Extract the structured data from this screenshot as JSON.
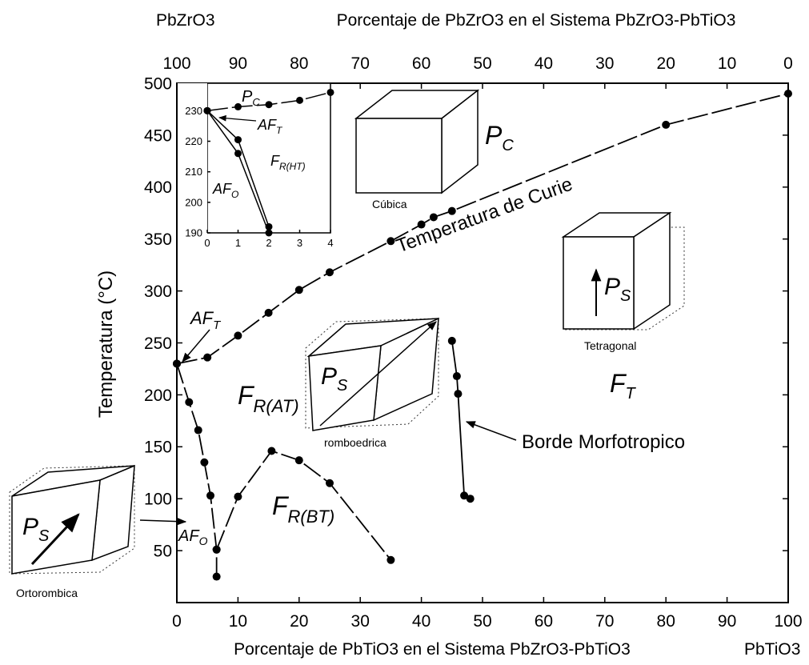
{
  "chart_data": [
    {
      "type": "line",
      "x_label": "Porcentaje de PbTiO3 en el Sistema PbZrO3-PbTiO3",
      "x_end_label": "PbTiO3",
      "x2_label": "Porcentaje de PbZrO3 en el Sistema PbZrO3-PbTiO3",
      "x2_end_label": "PbZrO3",
      "y_label": "Temperatura (°C)",
      "xlim": [
        0,
        100
      ],
      "xticks": [
        0,
        10,
        20,
        30,
        40,
        50,
        60,
        70,
        80,
        90,
        100
      ],
      "x2lim": [
        100,
        0
      ],
      "x2ticks": [
        100,
        90,
        80,
        70,
        60,
        50,
        40,
        30,
        20,
        10,
        0
      ],
      "ylim": [
        0,
        500
      ],
      "yticks": [
        50,
        100,
        150,
        200,
        250,
        300,
        350,
        400,
        450,
        500
      ],
      "grid": false,
      "series": [
        {
          "color": "#000000",
          "linestyle": "dashdot",
          "x": [
            0,
            5,
            10,
            15,
            20,
            25,
            35,
            40,
            42,
            45,
            80,
            100
          ],
          "values": [
            230,
            236,
            257,
            279,
            301,
            318,
            348,
            364,
            371,
            377,
            460,
            490
          ]
        },
        {
          "color": "#000000",
          "linestyle": "dashdot",
          "x": [
            0,
            2,
            3.5,
            4.5,
            5.5,
            6.5,
            6.5
          ],
          "values": [
            230,
            193,
            166,
            135,
            103,
            51,
            25
          ]
        },
        {
          "color": "#000000",
          "linestyle": "dashdot",
          "x": [
            6.5,
            10,
            15.5,
            20,
            25,
            35
          ],
          "values": [
            51,
            102,
            146,
            137,
            115,
            41
          ]
        },
        {
          "color": "#000000",
          "linestyle": "solid",
          "x": [
            45,
            45.8,
            46,
            47,
            48
          ],
          "values": [
            252,
            218,
            201,
            103,
            100
          ]
        }
      ],
      "annotations": {
        "curie": "Temperatura de Curie",
        "mpb": "Borde Morfotropico",
        "af_t": {
          "text": "AF",
          "sub": "T"
        },
        "fr_at": {
          "text": "F",
          "sub": "R(AT)"
        },
        "fr_bt": {
          "text": "F",
          "sub": "R(BT)"
        },
        "af_o": {
          "text": "AF",
          "sub": "O"
        },
        "f_t": {
          "text": "F",
          "sub": "T"
        },
        "p_c": {
          "text": "P",
          "sub": "C"
        },
        "ps_tetra": {
          "text": "P",
          "sub": "S"
        },
        "ps_rhombo": {
          "text": "P",
          "sub": "S"
        },
        "ps_ortho": {
          "text": "P",
          "sub": "S"
        },
        "cubica": "Cúbica",
        "tetragonal": "Tetragonal",
        "romboedrica": "romboedrica",
        "ortorombica": "Ortorombica"
      }
    },
    {
      "type": "line",
      "xlim": [
        0,
        4
      ],
      "xticks": [
        0,
        1,
        2,
        3,
        4
      ],
      "ylim": [
        190,
        239
      ],
      "yticks": [
        190,
        200,
        210,
        220,
        230
      ],
      "series": [
        {
          "color": "#000000",
          "linestyle": "dashdot",
          "x": [
            0,
            1,
            2,
            3,
            4
          ],
          "values": [
            230,
            231.3,
            232,
            233.4,
            236
          ]
        },
        {
          "color": "#000000",
          "linestyle": "solid",
          "x": [
            0,
            1,
            2
          ],
          "values": [
            230,
            220.5,
            192
          ]
        },
        {
          "color": "#000000",
          "linestyle": "solid",
          "x": [
            0,
            1,
            2
          ],
          "values": [
            230,
            216,
            190
          ]
        }
      ],
      "annotations": {
        "p_c": {
          "text": "P",
          "sub": "C"
        },
        "af_t": {
          "text": "AF",
          "sub": "T"
        },
        "fr_ht": {
          "text": "F",
          "sub": "R(HT)"
        },
        "af_o": {
          "text": "AF",
          "sub": "O"
        }
      }
    }
  ]
}
